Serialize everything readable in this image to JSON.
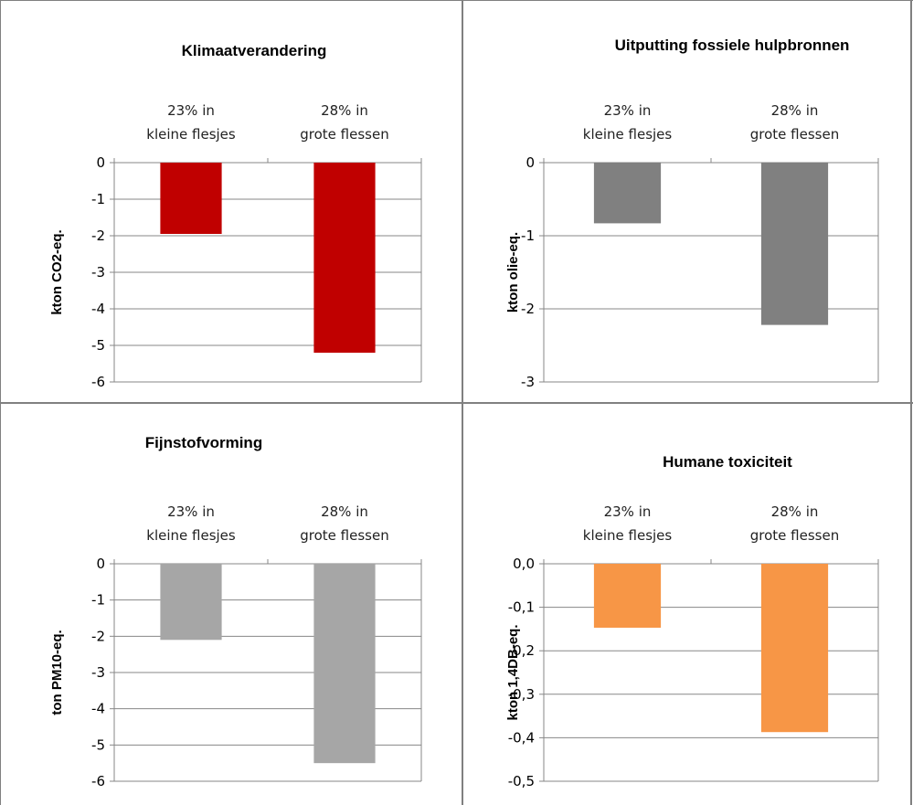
{
  "chart_data": [
    {
      "type": "bar",
      "title": "Klimaatverandering",
      "ylabel": "kton CO2-eq.",
      "categories": [
        [
          "23% in",
          "kleine flesjes"
        ],
        [
          "28% in",
          "grote flessen"
        ]
      ],
      "values": [
        -1.95,
        -5.2
      ],
      "ylim": [
        -6,
        0
      ],
      "yticks": [
        0,
        -1,
        -2,
        -3,
        -4,
        -5,
        -6
      ],
      "ytick_labels": [
        "0",
        "-1",
        "-2",
        "-3",
        "-4",
        "-5",
        "-6"
      ],
      "color": "#C00000",
      "grid": true
    },
    {
      "type": "bar",
      "title": "Uitputting fossiele hulpbronnen",
      "ylabel": "kton olie-eq.",
      "categories": [
        [
          "23% in",
          "kleine flesjes"
        ],
        [
          "28% in",
          "grote flessen"
        ]
      ],
      "values": [
        -0.83,
        -2.22
      ],
      "ylim": [
        -3,
        0
      ],
      "yticks": [
        0,
        -1,
        -2,
        -3
      ],
      "ytick_labels": [
        "0",
        "-1",
        "-2",
        "-3"
      ],
      "color": "#808080",
      "grid": true
    },
    {
      "type": "bar",
      "title": "Fijnstofvorming",
      "ylabel": "ton PM10-eq.",
      "categories": [
        [
          "23% in",
          "kleine flesjes"
        ],
        [
          "28% in",
          "grote flessen"
        ]
      ],
      "values": [
        -2.1,
        -5.5
      ],
      "ylim": [
        -6,
        0
      ],
      "yticks": [
        0,
        -1,
        -2,
        -3,
        -4,
        -5,
        -6
      ],
      "ytick_labels": [
        "0",
        "-1",
        "-2",
        "-3",
        "-4",
        "-5",
        "-6"
      ],
      "color": "#A6A6A6",
      "grid": true
    },
    {
      "type": "bar",
      "title": "Humane toxiciteit",
      "ylabel": "kton 1,4DB-eq.",
      "categories": [
        [
          "23% in",
          "kleine flesjes"
        ],
        [
          "28% in",
          "grote flessen"
        ]
      ],
      "values": [
        -0.147,
        -0.387
      ],
      "ylim": [
        -0.5,
        0
      ],
      "yticks": [
        0,
        -0.1,
        -0.2,
        -0.3,
        -0.4,
        -0.5
      ],
      "ytick_labels": [
        "0,0",
        "-0,1",
        "-0,2",
        "-0,3",
        "-0,4",
        "-0,5"
      ],
      "color": "#F79646",
      "grid": true
    }
  ]
}
